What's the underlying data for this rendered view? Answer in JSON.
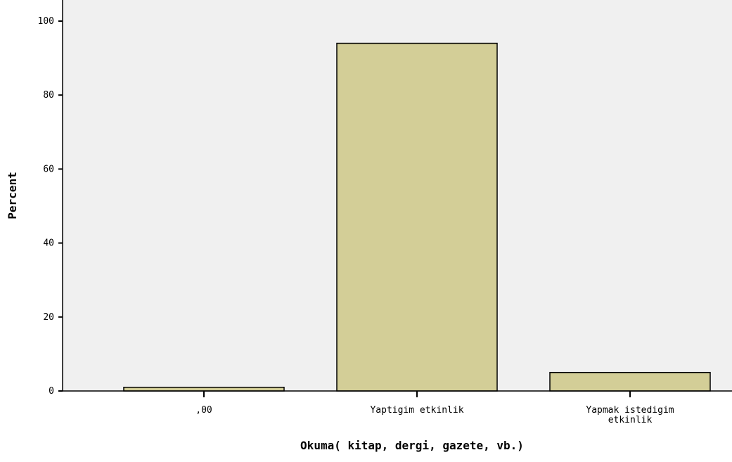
{
  "chart_data": {
    "type": "bar",
    "categories": [
      ",00",
      "Yaptigim etkinlik",
      "Yapmak istedigim etkinlik"
    ],
    "category_label_lines": [
      [
        ",00"
      ],
      [
        "Yaptigim etkinlik"
      ],
      [
        "Yapmak istedigim",
        "etkinlik"
      ]
    ],
    "values": [
      1.0,
      94.0,
      5.0
    ],
    "title": "",
    "xlabel": "Okuma( kitap, dergi, gazete, vb.)",
    "ylabel": "Percent",
    "ylim": [
      0,
      100
    ],
    "yticks": [
      0,
      20,
      40,
      60,
      80,
      100
    ],
    "ytick_labels": [
      "0",
      "20",
      "40",
      "60",
      "80",
      "100"
    ],
    "grid": false,
    "legend": "none",
    "colors": {
      "bar_fill": "#D3CE97",
      "bar_stroke": "#000000",
      "plot_background": "#F0F0F0",
      "axis": "#000000"
    }
  }
}
